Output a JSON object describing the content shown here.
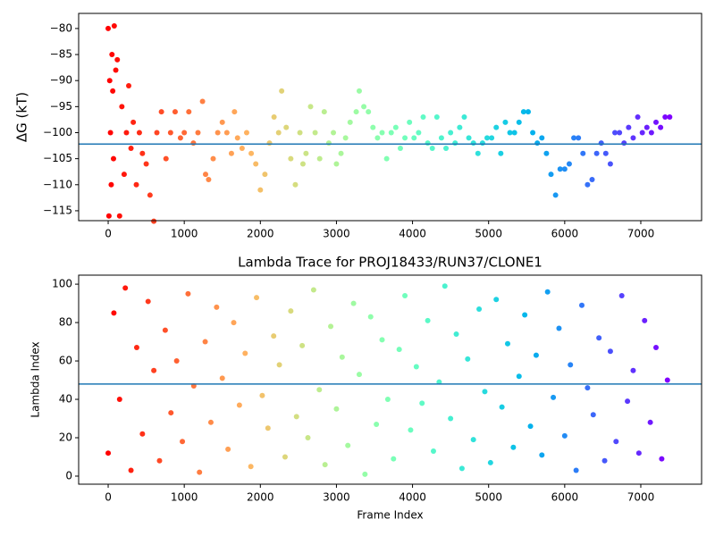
{
  "chart_data": [
    {
      "type": "scatter",
      "ylabel": "ΔG (kT)",
      "colormap": "rainbow_r",
      "hline": -102.2,
      "hline_color": "#1f77b4",
      "xlim": [
        -388,
        7799
      ],
      "ylim": [
        -116.9,
        -77.1
      ],
      "xticks": [
        0,
        1000,
        2000,
        3000,
        4000,
        5000,
        6000,
        7000
      ],
      "yticks": [
        {
          "value": -115,
          "label": "−115"
        },
        {
          "value": -110,
          "label": "−110"
        },
        {
          "value": -105,
          "label": "−105"
        },
        {
          "value": -100,
          "label": "−100"
        },
        {
          "value": -95,
          "label": "−95"
        },
        {
          "value": -90,
          "label": "−90"
        },
        {
          "value": -85,
          "label": "−85"
        },
        {
          "value": -80,
          "label": "−80"
        }
      ],
      "x": [
        0,
        10,
        20,
        30,
        40,
        50,
        60,
        70,
        80,
        100,
        120,
        150,
        180,
        210,
        240,
        270,
        300,
        330,
        370,
        410,
        450,
        500,
        550,
        600,
        640,
        700,
        760,
        820,
        880,
        950,
        1000,
        1060,
        1120,
        1180,
        1240,
        1280,
        1320,
        1380,
        1440,
        1500,
        1560,
        1620,
        1660,
        1700,
        1760,
        1820,
        1880,
        1940,
        2000,
        2060,
        2120,
        2180,
        2240,
        2280,
        2340,
        2400,
        2460,
        2520,
        2560,
        2600,
        2660,
        2720,
        2780,
        2840,
        2900,
        2960,
        3000,
        3060,
        3120,
        3180,
        3260,
        3300,
        3360,
        3420,
        3480,
        3540,
        3600,
        3660,
        3720,
        3780,
        3840,
        3900,
        3960,
        4020,
        4080,
        4140,
        4200,
        4260,
        4320,
        4380,
        4440,
        4500,
        4560,
        4620,
        4680,
        4740,
        4800,
        4860,
        4920,
        4980,
        5040,
        5100,
        5160,
        5220,
        5280,
        5340,
        5400,
        5460,
        5520,
        5580,
        5640,
        5700,
        5760,
        5820,
        5880,
        5940,
        6000,
        6060,
        6120,
        6180,
        6240,
        6300,
        6360,
        6420,
        6480,
        6540,
        6600,
        6660,
        6720,
        6780,
        6840,
        6900,
        6960,
        7020,
        7080,
        7140,
        7200,
        7260,
        7320,
        7380
      ],
      "values": [
        -80,
        -116,
        -90,
        -100,
        -110,
        -85,
        -92,
        -105,
        -79.5,
        -88,
        -86,
        -116,
        -95,
        -108,
        -100,
        -91,
        -103,
        -98,
        -110,
        -100,
        -104,
        -106,
        -112,
        -117,
        -100,
        -96,
        -105,
        -100,
        -96,
        -101,
        -100,
        -96,
        -102,
        -100,
        -94,
        -108,
        -109,
        -105,
        -100,
        -98,
        -100,
        -104,
        -96,
        -101,
        -103,
        -100,
        -104,
        -106,
        -111,
        -108,
        -102,
        -97,
        -100,
        -92,
        -99,
        -105,
        -110,
        -100,
        -106,
        -104,
        -95,
        -100,
        -105,
        -96,
        -102,
        -100,
        -106,
        -104,
        -101,
        -98,
        -96,
        -92,
        -95,
        -96,
        -99,
        -101,
        -100,
        -105,
        -100,
        -99,
        -103,
        -101,
        -98,
        -101,
        -100,
        -97,
        -102,
        -103,
        -97,
        -101,
        -103,
        -100,
        -102,
        -99,
        -97,
        -101,
        -102,
        -104,
        -102,
        -101,
        -101,
        -99,
        -104,
        -98,
        -100,
        -100,
        -98,
        -96,
        -96,
        -100,
        -102,
        -101,
        -104,
        -108,
        -112,
        -107,
        -107,
        -106,
        -101,
        -101,
        -104,
        -110,
        -109,
        -104,
        -102,
        -104,
        -106,
        -100,
        -100,
        -102,
        -99,
        -101,
        -97,
        -100,
        -99,
        -100,
        -98,
        -99,
        -97,
        -97
      ]
    },
    {
      "type": "scatter",
      "title": "Lambda Trace for PROJ18433/RUN37/CLONE1",
      "xlabel": "Frame Index",
      "ylabel": "Lambda Index",
      "colormap": "rainbow_r",
      "hline": 48,
      "hline_color": "#1f77b4",
      "xlim": [
        -388,
        7799
      ],
      "ylim": [
        -4.2,
        104.7
      ],
      "xticks": [
        0,
        1000,
        2000,
        3000,
        4000,
        5000,
        6000,
        7000
      ],
      "yticks": [
        0,
        20,
        40,
        60,
        80,
        100
      ],
      "x": [
        0,
        75,
        150,
        225,
        300,
        375,
        450,
        525,
        600,
        675,
        750,
        825,
        900,
        975,
        1050,
        1125,
        1200,
        1275,
        1350,
        1425,
        1500,
        1575,
        1650,
        1725,
        1800,
        1875,
        1950,
        2025,
        2100,
        2175,
        2250,
        2325,
        2400,
        2475,
        2550,
        2625,
        2700,
        2775,
        2850,
        2925,
        3000,
        3075,
        3150,
        3225,
        3300,
        3375,
        3450,
        3525,
        3600,
        3675,
        3750,
        3825,
        3900,
        3975,
        4050,
        4125,
        4200,
        4275,
        4350,
        4425,
        4500,
        4575,
        4650,
        4725,
        4800,
        4875,
        4950,
        5025,
        5100,
        5175,
        5250,
        5325,
        5400,
        5475,
        5550,
        5625,
        5700,
        5775,
        5850,
        5925,
        6000,
        6075,
        6150,
        6225,
        6300,
        6375,
        6450,
        6525,
        6600,
        6675,
        6750,
        6825,
        6900,
        6975,
        7050,
        7125,
        7200,
        7275,
        7350
      ],
      "values": [
        12,
        85,
        40,
        98,
        3,
        67,
        22,
        91,
        55,
        8,
        76,
        33,
        60,
        18,
        95,
        47,
        2,
        70,
        28,
        88,
        51,
        14,
        80,
        37,
        64,
        5,
        93,
        42,
        25,
        73,
        58,
        10,
        86,
        31,
        68,
        20,
        97,
        45,
        6,
        78,
        35,
        62,
        16,
        90,
        53,
        1,
        83,
        27,
        71,
        40,
        9,
        66,
        94,
        24,
        57,
        38,
        81,
        13,
        49,
        99,
        30,
        74,
        4,
        61,
        19,
        87,
        44,
        7,
        92,
        36,
        69,
        15,
        52,
        84,
        26,
        63,
        11,
        96,
        41,
        77,
        21,
        58,
        3,
        89,
        46,
        32,
        72,
        8,
        65,
        18,
        94,
        39,
        55,
        12,
        81,
        28,
        67,
        9,
        50
      ]
    }
  ]
}
